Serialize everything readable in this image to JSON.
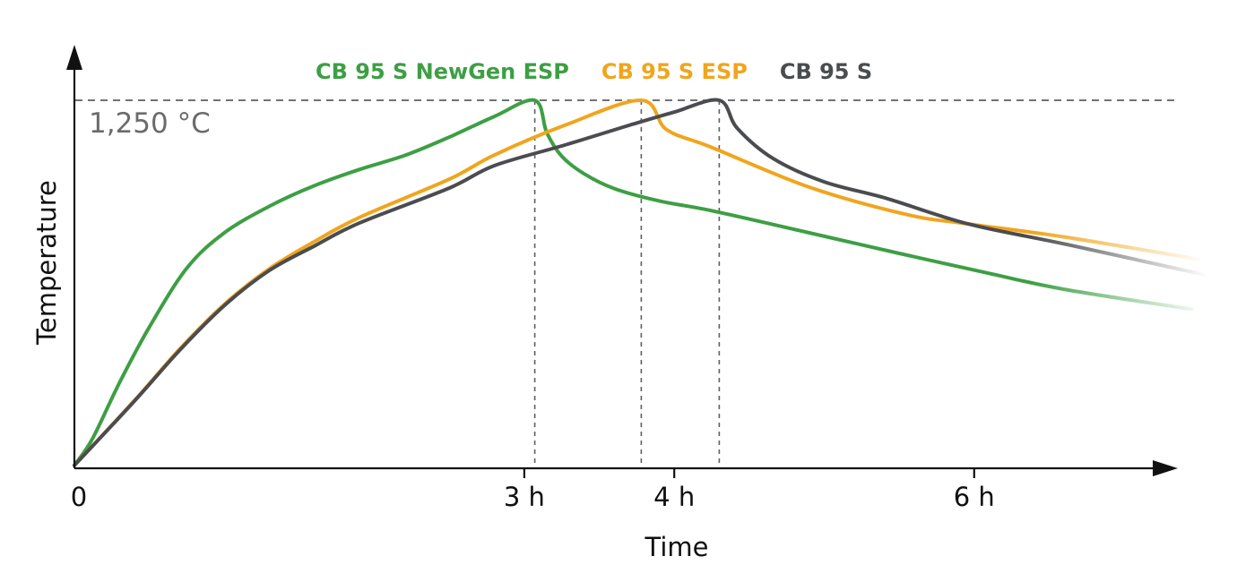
{
  "chart_data": {
    "type": "line",
    "title": "",
    "xlabel": "Time",
    "ylabel": "Temperature",
    "x_unit": "h",
    "y_unit": "°C",
    "x_range_h": [
      0,
      7.6
    ],
    "y_range_c": [
      0,
      1320
    ],
    "grid": false,
    "legend_position": "top",
    "max_temp_annotation": {
      "label": "1,250 °C",
      "value_c": 1250
    },
    "x_ticks": [
      {
        "t_h": 0,
        "label": "0",
        "tick_mark": false
      },
      {
        "t_h": 3,
        "label": "3 h",
        "tick_mark": true
      },
      {
        "t_h": 4,
        "label": "4 h",
        "tick_mark": true
      },
      {
        "t_h": 6,
        "label": "6 h",
        "tick_mark": true
      }
    ],
    "peak_guide_lines": {
      "style": "dashed",
      "times_h": [
        3.07,
        3.78,
        4.3
      ]
    },
    "series": [
      {
        "name": "CB 95 S NewGen ESP",
        "color": "#3d9f44",
        "peak_time_h": 3.07,
        "peak_temp_c": 1250,
        "fades_out_right": true,
        "points_t_h_temp_c": [
          [
            0,
            10
          ],
          [
            0.12,
            100
          ],
          [
            0.3,
            290
          ],
          [
            0.5,
            480
          ],
          [
            0.75,
            680
          ],
          [
            1.0,
            800
          ],
          [
            1.3,
            890
          ],
          [
            1.6,
            960
          ],
          [
            1.9,
            1015
          ],
          [
            2.2,
            1062
          ],
          [
            2.5,
            1125
          ],
          [
            2.8,
            1195
          ],
          [
            3.07,
            1250
          ],
          [
            3.15,
            1140
          ],
          [
            3.25,
            1060
          ],
          [
            3.4,
            1000
          ],
          [
            3.6,
            950
          ],
          [
            3.9,
            908
          ],
          [
            4.25,
            875
          ],
          [
            4.9,
            800
          ],
          [
            5.5,
            730
          ],
          [
            6.1,
            662
          ],
          [
            6.6,
            608
          ],
          [
            7.45,
            540
          ]
        ]
      },
      {
        "name": "CB 95 S ESP",
        "color": "#f0a51d",
        "peak_time_h": 3.78,
        "peak_temp_c": 1250,
        "fades_out_right": true,
        "points_t_h_temp_c": [
          [
            0,
            10
          ],
          [
            0.4,
            230
          ],
          [
            0.7,
            404
          ],
          [
            1.0,
            557
          ],
          [
            1.3,
            678
          ],
          [
            1.6,
            770
          ],
          [
            1.9,
            852
          ],
          [
            2.5,
            982
          ],
          [
            2.8,
            1064
          ],
          [
            3.27,
            1165
          ],
          [
            3.78,
            1250
          ],
          [
            3.95,
            1150
          ],
          [
            4.25,
            1090
          ],
          [
            4.9,
            955
          ],
          [
            5.55,
            862
          ],
          [
            5.96,
            830
          ],
          [
            6.6,
            786
          ],
          [
            7.5,
            710
          ]
        ]
      },
      {
        "name": "CB 95 S",
        "color": "#4a4c4f",
        "peak_time_h": 4.3,
        "peak_temp_c": 1250,
        "fades_out_right": true,
        "points_t_h_temp_c": [
          [
            0,
            10
          ],
          [
            0.4,
            228
          ],
          [
            0.7,
            400
          ],
          [
            1.0,
            553
          ],
          [
            1.3,
            672
          ],
          [
            1.6,
            755
          ],
          [
            1.9,
            833
          ],
          [
            2.5,
            952
          ],
          [
            2.8,
            1028
          ],
          [
            3.27,
            1098
          ],
          [
            3.7,
            1165
          ],
          [
            4.0,
            1210
          ],
          [
            4.3,
            1250
          ],
          [
            4.42,
            1155
          ],
          [
            4.66,
            1052
          ],
          [
            5.0,
            973
          ],
          [
            5.42,
            916
          ],
          [
            5.96,
            830
          ],
          [
            6.62,
            760
          ],
          [
            7.54,
            657
          ]
        ]
      }
    ]
  },
  "colors": {
    "background": "#ffffff",
    "axis": "#111111",
    "dashed_guides": "#5f5f5f",
    "annotation_text": "#6b6b6b",
    "tick_text": "#101010"
  }
}
